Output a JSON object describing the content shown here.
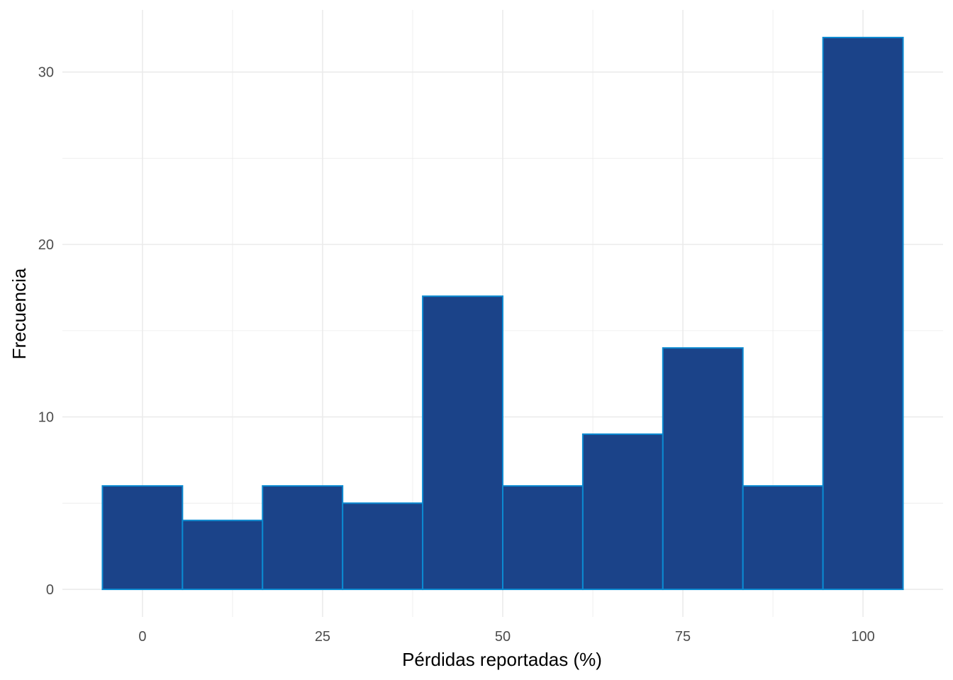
{
  "chart_data": {
    "type": "bar",
    "subtype": "histogram",
    "xlabel": "Pérdidas reportadas (%)",
    "ylabel": "Frecuencia",
    "bin_width": 11.111,
    "bins": [
      {
        "x_start": -5.556,
        "x_end": 5.556,
        "count": 6
      },
      {
        "x_start": 5.556,
        "x_end": 16.667,
        "count": 4
      },
      {
        "x_start": 16.667,
        "x_end": 27.778,
        "count": 6
      },
      {
        "x_start": 27.778,
        "x_end": 38.889,
        "count": 5
      },
      {
        "x_start": 38.889,
        "x_end": 50.0,
        "count": 17
      },
      {
        "x_start": 50.0,
        "x_end": 61.111,
        "count": 6
      },
      {
        "x_start": 61.111,
        "x_end": 72.222,
        "count": 9
      },
      {
        "x_start": 72.222,
        "x_end": 83.333,
        "count": 14
      },
      {
        "x_start": 83.333,
        "x_end": 94.444,
        "count": 6
      },
      {
        "x_start": 94.444,
        "x_end": 105.556,
        "count": 32
      }
    ],
    "x_ticks": [
      "0",
      "25",
      "50",
      "75",
      "100"
    ],
    "x_tick_values": [
      0,
      25,
      50,
      75,
      100
    ],
    "y_ticks": [
      "0",
      "10",
      "20",
      "30"
    ],
    "y_tick_values": [
      0,
      10,
      20,
      30
    ],
    "xlim": [
      -11.11,
      111.11
    ],
    "ylim": [
      -1.6,
      33.6
    ],
    "grid": true,
    "colors": {
      "bar_fill": "#1b4389",
      "bar_outline": "#0b8ad1",
      "grid": "#ebebeb",
      "tick_text": "#4d4d4d"
    }
  }
}
